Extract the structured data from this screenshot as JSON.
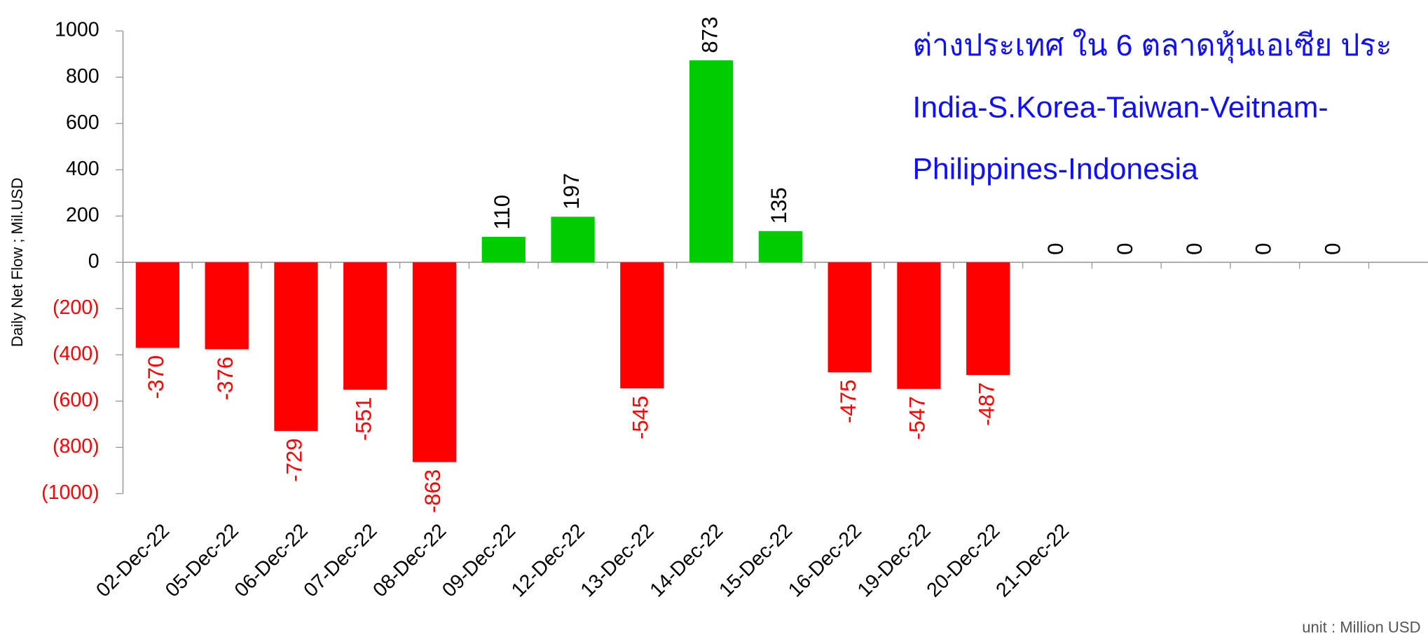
{
  "chart_data": {
    "type": "bar",
    "title_lines": [
      "ต่างประเทศ ใน 6 ตลาดหุ้นเอเซีย ประ",
      "India-S.Korea-Taiwan-Veitnam-",
      "Philippines-Indonesia"
    ],
    "y_label": "Daily Net Flow ; Mil.USD",
    "note": "unit : Million USD",
    "categories": [
      "02-Dec-22",
      "05-Dec-22",
      "06-Dec-22",
      "07-Dec-22",
      "08-Dec-22",
      "09-Dec-22",
      "12-Dec-22",
      "13-Dec-22",
      "14-Dec-22",
      "15-Dec-22",
      "16-Dec-22",
      "19-Dec-22",
      "20-Dec-22",
      "21-Dec-22",
      null,
      null,
      null,
      null
    ],
    "values": [
      -370,
      -376,
      -729,
      -551,
      -863,
      110,
      197,
      -545,
      873,
      135,
      -475,
      -547,
      -487,
      0,
      0,
      0,
      0,
      0
    ],
    "positive_color": "#00cc00",
    "negative_color": "#ff0000",
    "ylim": [
      -1000,
      1000
    ],
    "yticks": [
      {
        "value": -1000,
        "label": "(1000)"
      },
      {
        "value": -800,
        "label": "(800)"
      },
      {
        "value": -600,
        "label": "(600)"
      },
      {
        "value": -400,
        "label": "(400)"
      },
      {
        "value": -200,
        "label": "(200)"
      },
      0,
      200,
      400,
      600,
      800,
      1000
    ]
  }
}
